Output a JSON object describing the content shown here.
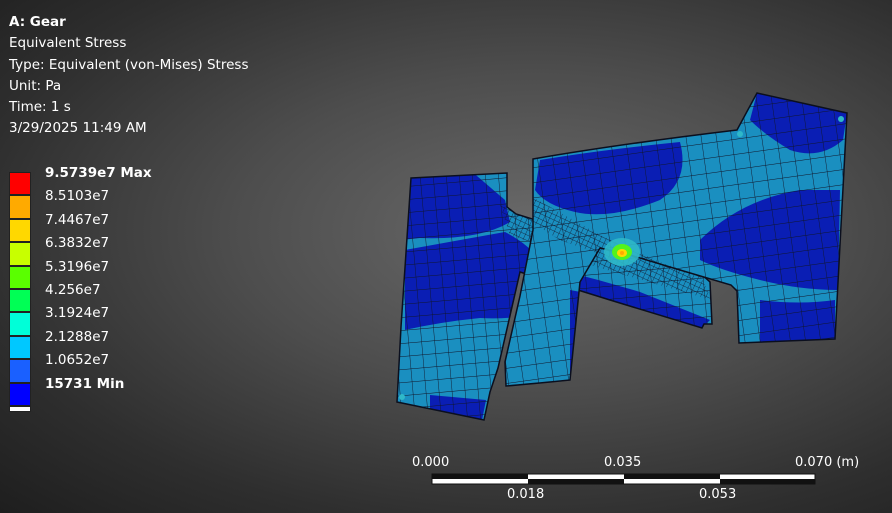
{
  "info": {
    "title": "A: Gear",
    "result": "Equivalent Stress",
    "type": "Type: Equivalent (von-Mises) Stress",
    "unit": "Unit: Pa",
    "time": "Time: 1 s",
    "date": "3/29/2025 11:49 AM"
  },
  "legend": {
    "labels": [
      "9.5739e7 Max",
      "8.5103e7",
      "7.4467e7",
      "6.3832e7",
      "5.3196e7",
      "4.256e7",
      "3.1924e7",
      "2.1288e7",
      "1.0652e7",
      "15731 Min"
    ],
    "colors": [
      "#ff0000",
      "#ffaa00",
      "#ffd800",
      "#c8ff00",
      "#5aff00",
      "#00ff55",
      "#00ffd8",
      "#00c8ff",
      "#1a60ff",
      "#0000ff"
    ]
  },
  "scale_bar": {
    "top_labels": [
      "0.000",
      "0.035",
      "0.070 (m)"
    ],
    "bottom_labels": [
      "0.018",
      "0.053"
    ]
  },
  "mesh_colors": {
    "dark_blue": "#0a1eb4",
    "light_blue": "#1a8fc0",
    "cyan": "#2fb8c8",
    "mesh_line": "#10152a"
  }
}
